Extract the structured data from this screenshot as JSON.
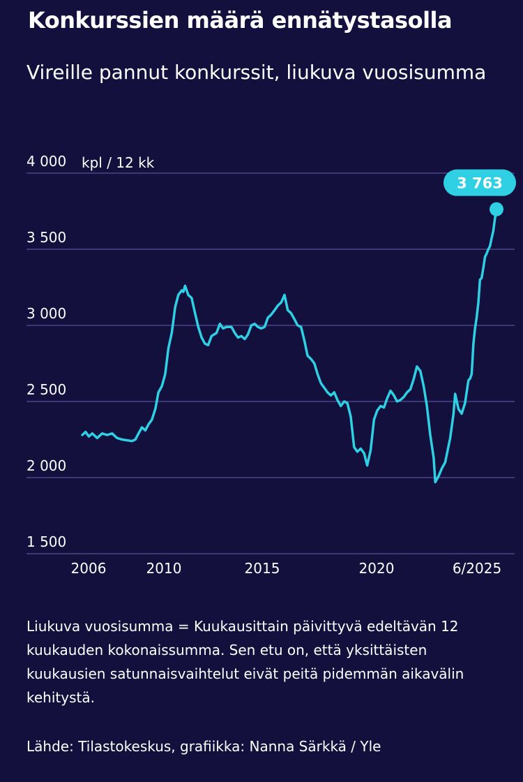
{
  "title": "Konkurssien määrä ennätystasolla",
  "subtitle": "Vireille pannut konkurssit, liukuva vuosisumma",
  "footnote": "Liukuva vuosisumma = Kuukausittain päivittyvä edeltävän 12 kuukauden kokonaissumma. Sen etu on, että yksittäisten kuukausien satunnaisvaihtelut eivät peitä pidemmän aikavälin kehitystä.",
  "source": "Lähde: Tilastokeskus, grafiikka: Nanna Särkkä / Yle",
  "colors": {
    "background": "#13103e",
    "line": "#2fd0e4",
    "gridline": "#4a4688",
    "text": "#ffffff",
    "badge_text": "#13103e"
  },
  "chart_data": {
    "type": "line",
    "title": "Konkurssien määrä ennätystasolla",
    "subtitle": "Vireille pannut konkurssit, liukuva vuosisumma",
    "ylabel": "kpl / 12 kk",
    "ylim": [
      1500,
      4000
    ],
    "yticks": [
      4000,
      3500,
      3000,
      2500,
      2000,
      1500
    ],
    "ytick_labels": [
      "4 000",
      "3 500",
      "3 000",
      "2 500",
      "2 000",
      "1 500"
    ],
    "xlim": [
      2005.5,
      2025.5
    ],
    "xticks": [
      2006,
      2010,
      2015,
      2020,
      2025.5
    ],
    "xtick_labels": [
      "2006",
      "2010",
      "2015",
      "2020",
      "6/2025"
    ],
    "grid": true,
    "last_value_label": "3 763",
    "series": [
      {
        "values": [
          [
            2005.5,
            2280
          ],
          [
            2005.67,
            2300
          ],
          [
            2005.83,
            2270
          ],
          [
            2006.0,
            2290
          ],
          [
            2006.25,
            2260
          ],
          [
            2006.5,
            2290
          ],
          [
            2006.75,
            2280
          ],
          [
            2007.0,
            2290
          ],
          [
            2007.25,
            2260
          ],
          [
            2007.5,
            2250
          ],
          [
            2007.75,
            2245
          ],
          [
            2008.0,
            2240
          ],
          [
            2008.17,
            2250
          ],
          [
            2008.33,
            2290
          ],
          [
            2008.5,
            2330
          ],
          [
            2008.67,
            2310
          ],
          [
            2008.83,
            2350
          ],
          [
            2009.0,
            2380
          ],
          [
            2009.17,
            2450
          ],
          [
            2009.33,
            2560
          ],
          [
            2009.5,
            2600
          ],
          [
            2009.67,
            2680
          ],
          [
            2009.83,
            2850
          ],
          [
            2010.0,
            2950
          ],
          [
            2010.17,
            3120
          ],
          [
            2010.33,
            3200
          ],
          [
            2010.5,
            3230
          ],
          [
            2010.58,
            3220
          ],
          [
            2010.67,
            3260
          ],
          [
            2010.83,
            3200
          ],
          [
            2011.0,
            3180
          ],
          [
            2011.17,
            3080
          ],
          [
            2011.33,
            2990
          ],
          [
            2011.5,
            2920
          ],
          [
            2011.67,
            2880
          ],
          [
            2011.83,
            2870
          ],
          [
            2012.0,
            2930
          ],
          [
            2012.25,
            2950
          ],
          [
            2012.42,
            3010
          ],
          [
            2012.58,
            2980
          ],
          [
            2012.75,
            2990
          ],
          [
            2013.0,
            2990
          ],
          [
            2013.17,
            2950
          ],
          [
            2013.33,
            2920
          ],
          [
            2013.5,
            2930
          ],
          [
            2013.67,
            2910
          ],
          [
            2013.83,
            2940
          ],
          [
            2014.0,
            3000
          ],
          [
            2014.17,
            3010
          ],
          [
            2014.33,
            2990
          ],
          [
            2014.5,
            2980
          ],
          [
            2014.67,
            2990
          ],
          [
            2014.83,
            3050
          ],
          [
            2015.0,
            3070
          ],
          [
            2015.17,
            3100
          ],
          [
            2015.33,
            3130
          ],
          [
            2015.5,
            3150
          ],
          [
            2015.67,
            3200
          ],
          [
            2015.83,
            3100
          ],
          [
            2016.0,
            3080
          ],
          [
            2016.17,
            3040
          ],
          [
            2016.33,
            3000
          ],
          [
            2016.5,
            2990
          ],
          [
            2016.67,
            2900
          ],
          [
            2016.83,
            2800
          ],
          [
            2017.0,
            2780
          ],
          [
            2017.17,
            2750
          ],
          [
            2017.33,
            2680
          ],
          [
            2017.5,
            2620
          ],
          [
            2017.67,
            2590
          ],
          [
            2017.83,
            2560
          ],
          [
            2018.0,
            2540
          ],
          [
            2018.17,
            2560
          ],
          [
            2018.33,
            2510
          ],
          [
            2018.5,
            2470
          ],
          [
            2018.67,
            2500
          ],
          [
            2018.83,
            2490
          ],
          [
            2019.0,
            2400
          ],
          [
            2019.17,
            2200
          ],
          [
            2019.33,
            2170
          ],
          [
            2019.5,
            2190
          ],
          [
            2019.67,
            2160
          ],
          [
            2019.83,
            2080
          ],
          [
            2020.0,
            2180
          ],
          [
            2020.17,
            2380
          ],
          [
            2020.33,
            2440
          ],
          [
            2020.5,
            2470
          ],
          [
            2020.67,
            2460
          ],
          [
            2020.83,
            2520
          ],
          [
            2021.0,
            2570
          ],
          [
            2021.17,
            2540
          ],
          [
            2021.33,
            2500
          ],
          [
            2021.5,
            2510
          ],
          [
            2021.67,
            2530
          ],
          [
            2021.83,
            2560
          ],
          [
            2022.0,
            2580
          ],
          [
            2022.17,
            2650
          ],
          [
            2022.33,
            2730
          ],
          [
            2022.5,
            2700
          ],
          [
            2022.67,
            2600
          ],
          [
            2022.83,
            2470
          ],
          [
            2023.0,
            2280
          ],
          [
            2023.17,
            2130
          ],
          [
            2023.25,
            1970
          ],
          [
            2023.42,
            2010
          ],
          [
            2023.58,
            2060
          ],
          [
            2023.75,
            2100
          ],
          [
            2024.0,
            2260
          ],
          [
            2024.17,
            2420
          ],
          [
            2024.25,
            2550
          ],
          [
            2024.42,
            2450
          ],
          [
            2024.58,
            2420
          ],
          [
            2024.75,
            2490
          ],
          [
            2024.92,
            2640
          ],
          [
            2025.0,
            2650
          ],
          [
            2025.08,
            2680
          ],
          [
            2025.17,
            2880
          ],
          [
            2025.25,
            2980
          ],
          [
            2025.33,
            3050
          ],
          [
            2025.42,
            3150
          ],
          [
            2025.5,
            3300
          ],
          [
            2025.58,
            3310
          ],
          [
            2025.67,
            3380
          ],
          [
            2025.75,
            3450
          ],
          [
            2025.83,
            3470
          ],
          [
            2025.92,
            3500
          ],
          [
            2026.0,
            3520
          ],
          [
            2026.08,
            3570
          ],
          [
            2026.17,
            3620
          ],
          [
            2026.25,
            3700
          ],
          [
            2026.33,
            3763
          ]
        ]
      }
    ]
  }
}
